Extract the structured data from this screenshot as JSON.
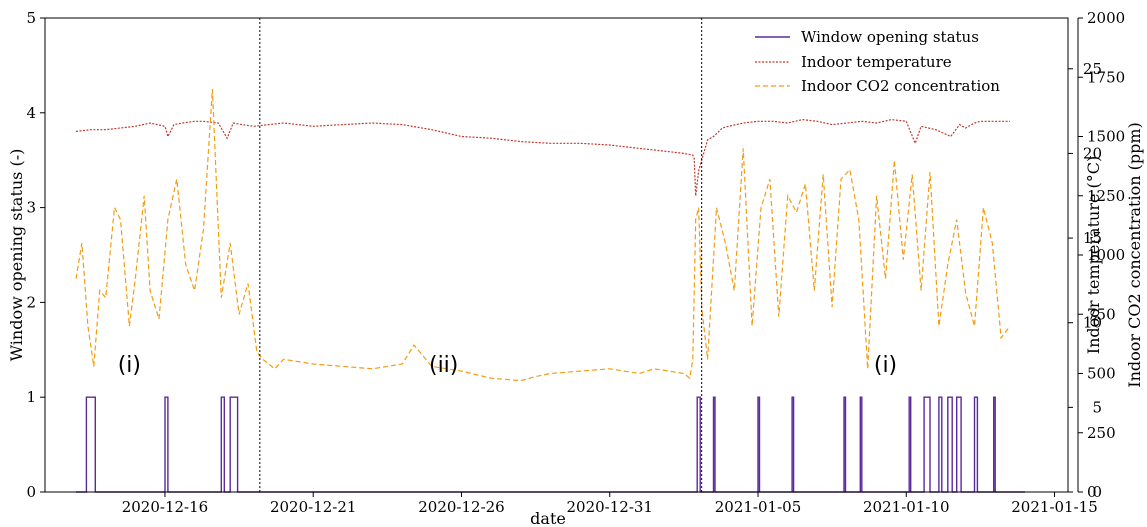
{
  "chart_data": {
    "type": "line",
    "xlabel": "date",
    "x_ticks": [
      "2020-12-16",
      "2020-12-21",
      "2020-12-26",
      "2020-12-31",
      "2021-01-05",
      "2021-01-10",
      "2021-01-15"
    ],
    "x_range": [
      "2020-12-13",
      "2021-01-15"
    ],
    "grid": false,
    "legend_placement": "top-right",
    "axes": [
      {
        "id": "left",
        "label": "Window opening status (-)",
        "ylim": [
          0,
          5
        ],
        "ticks": [
          0,
          1,
          2,
          3,
          4,
          5
        ]
      },
      {
        "id": "temp",
        "label": "Indoor temperature (°C)",
        "ylim": [
          0,
          28
        ],
        "ticks": [
          0,
          5,
          10,
          15,
          20,
          25
        ]
      },
      {
        "id": "co2",
        "label": "Indoor CO2 concentration (ppm)",
        "ylim": [
          0,
          2000
        ],
        "ticks": [
          0,
          250,
          500,
          750,
          1000,
          1250,
          1500,
          1750,
          2000
        ]
      }
    ],
    "vlines": [
      "2020-12-19.2",
      "2021-01-03.1"
    ],
    "annotations": [
      {
        "text": "(i)",
        "date": 14.8,
        "value": 1.35
      },
      {
        "text": "(ii)",
        "date": 25.4,
        "value": 1.35
      },
      {
        "text": "(i)",
        "date": 40.3,
        "value": 1.35
      }
    ],
    "series": [
      {
        "name": "Window opening status",
        "axis": "left",
        "color": "#5b2a9b",
        "style": "solid",
        "x_days_from_2020-12-13": [
          0,
          0.35,
          0.35,
          0.65,
          0.65,
          3.0,
          3.0,
          3.1,
          3.1,
          4.9,
          4.9,
          5.0,
          5.0,
          5.2,
          5.2,
          5.45,
          5.45,
          20.95,
          20.95,
          21.05,
          21.05,
          21.5,
          21.5,
          21.55,
          21.55,
          23.0,
          23.0,
          23.05,
          23.05,
          24.15,
          24.15,
          24.2,
          24.2,
          25.9,
          25.9,
          25.95,
          25.95,
          26.45,
          26.45,
          26.5,
          26.5,
          28.1,
          28.1,
          28.15,
          28.15,
          28.6,
          28.6,
          28.8,
          28.8,
          29.1,
          29.1,
          29.2,
          29.2,
          29.4,
          29.4,
          29.55,
          29.55,
          29.7,
          29.7,
          29.85,
          29.85,
          30.3,
          30.3,
          30.4,
          30.4,
          30.95,
          30.95,
          31.0,
          31.0,
          32.0
        ],
        "values": [
          0,
          0,
          1,
          1,
          0,
          0,
          1,
          1,
          0,
          0,
          1,
          1,
          0,
          0,
          1,
          1,
          0,
          0,
          1,
          1,
          0,
          0,
          1,
          1,
          0,
          0,
          1,
          1,
          0,
          0,
          1,
          1,
          0,
          0,
          1,
          1,
          0,
          0,
          1,
          1,
          0,
          0,
          1,
          1,
          0,
          0,
          1,
          1,
          0,
          0,
          1,
          1,
          0,
          0,
          1,
          1,
          0,
          0,
          1,
          1,
          0,
          0,
          1,
          1,
          0,
          0,
          1,
          1,
          0,
          0
        ]
      },
      {
        "name": "Indoor temperature",
        "axis": "temp",
        "color": "#c0392b",
        "style": "dotted",
        "x_days_from_2020-12-13": [
          0,
          0.5,
          1,
          1.5,
          2,
          2.5,
          3,
          3.1,
          3.3,
          3.6,
          4,
          4.3,
          4.8,
          5.1,
          5.3,
          5.6,
          6,
          6.5,
          7,
          8,
          9,
          10,
          11,
          12,
          13,
          14,
          15,
          16,
          17,
          18,
          18.5,
          19,
          19.5,
          20,
          20.5,
          20.8,
          20.85,
          20.9,
          21.0,
          21.1,
          21.3,
          21.5,
          21.8,
          22,
          22.5,
          23,
          23.5,
          24,
          24.5,
          25,
          25.5,
          26,
          26.5,
          27,
          27.5,
          28,
          28.3,
          28.5,
          29,
          29.5,
          29.8,
          30,
          30.3,
          30.5,
          31,
          31.5
        ],
        "values": [
          21.3,
          21.4,
          21.4,
          21.5,
          21.6,
          21.8,
          21.6,
          21.0,
          21.7,
          21.8,
          21.9,
          21.9,
          21.8,
          20.9,
          21.8,
          21.7,
          21.6,
          21.7,
          21.8,
          21.6,
          21.7,
          21.8,
          21.7,
          21.4,
          21.0,
          20.9,
          20.7,
          20.6,
          20.6,
          20.5,
          20.4,
          20.3,
          20.2,
          20.1,
          20.0,
          19.9,
          19.7,
          17.5,
          19.0,
          19.6,
          20.8,
          21.0,
          21.5,
          21.6,
          21.8,
          21.9,
          21.9,
          21.8,
          22.0,
          21.9,
          21.7,
          21.8,
          21.9,
          21.8,
          22.0,
          21.9,
          20.6,
          21.6,
          21.4,
          21.0,
          21.7,
          21.5,
          21.8,
          21.9,
          21.9,
          21.9
        ]
      },
      {
        "name": "Indoor CO2 concentration",
        "axis": "co2",
        "color": "#f39c12",
        "style": "dashed",
        "x_days_from_2020-12-13": [
          0,
          0.2,
          0.4,
          0.6,
          0.8,
          1,
          1.3,
          1.5,
          1.8,
          2,
          2.3,
          2.5,
          2.8,
          3.1,
          3.4,
          3.7,
          4,
          4.3,
          4.6,
          4.9,
          5.2,
          5.5,
          5.8,
          6.1,
          6.3,
          6.5,
          6.7,
          7,
          8,
          9,
          10,
          11,
          11.4,
          12,
          13,
          14,
          15,
          15.6,
          16,
          17,
          18,
          19,
          19.5,
          20,
          20.5,
          20.7,
          20.8,
          20.9,
          21.0,
          21.1,
          21.3,
          21.6,
          21.9,
          22.2,
          22.5,
          22.8,
          23.1,
          23.4,
          23.7,
          24.0,
          24.3,
          24.6,
          24.9,
          25.2,
          25.5,
          25.8,
          26.1,
          26.4,
          26.7,
          27.0,
          27.3,
          27.6,
          27.9,
          28.2,
          28.5,
          28.8,
          29.1,
          29.4,
          29.7,
          30.0,
          30.3,
          30.6,
          30.9,
          31.2,
          31.5
        ],
        "values": [
          900,
          1050,
          700,
          530,
          850,
          820,
          1200,
          1150,
          700,
          900,
          1250,
          850,
          730,
          1150,
          1320,
          960,
          850,
          1110,
          1700,
          820,
          1050,
          750,
          880,
          590,
          560,
          540,
          520,
          560,
          540,
          530,
          520,
          540,
          620,
          530,
          510,
          480,
          470,
          490,
          500,
          510,
          520,
          500,
          520,
          510,
          500,
          480,
          560,
          1150,
          1200,
          780,
          560,
          1200,
          1050,
          850,
          1450,
          700,
          1200,
          1320,
          740,
          1250,
          1180,
          1300,
          850,
          1340,
          780,
          1320,
          1360,
          1150,
          520,
          1250,
          900,
          1400,
          980,
          1340,
          850,
          1350,
          700,
          960,
          1150,
          840,
          700,
          1200,
          1050,
          650,
          700
        ]
      }
    ]
  }
}
